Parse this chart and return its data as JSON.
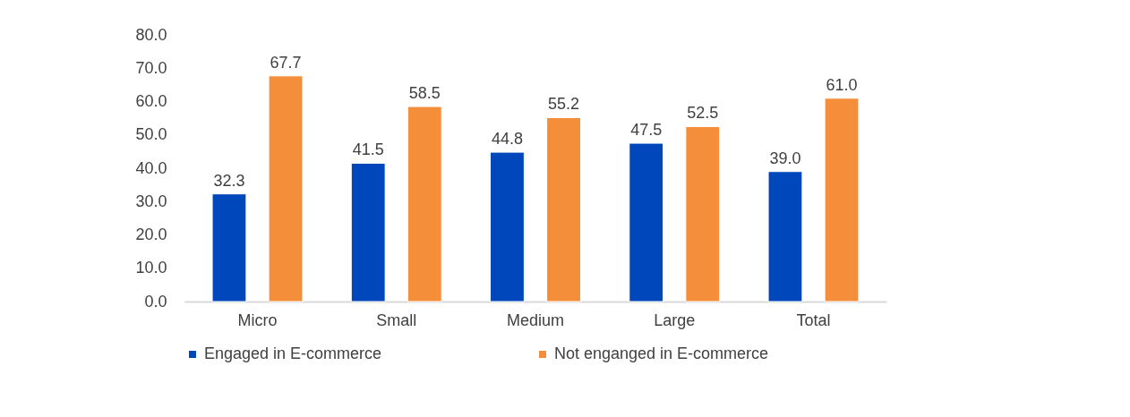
{
  "chart_data": {
    "type": "bar",
    "categories": [
      "Micro",
      "Small",
      "Medium",
      "Large",
      "Total"
    ],
    "series": [
      {
        "name": "Engaged in E-commerce",
        "color": "#0047bb",
        "values": [
          32.3,
          41.5,
          44.8,
          47.5,
          39.0
        ],
        "value_labels": [
          "32.3",
          "41.5",
          "44.8",
          "47.5",
          "39.0"
        ]
      },
      {
        "name": "Not enganged in E-commerce",
        "color": "#f58e3a",
        "values": [
          67.7,
          58.5,
          55.2,
          52.5,
          61.0
        ],
        "value_labels": [
          "67.7",
          "58.5",
          "55.2",
          "52.5",
          "61.0"
        ]
      }
    ],
    "ylim": [
      0,
      80
    ],
    "yticks": [
      {
        "value": 0,
        "label": "0.0"
      },
      {
        "value": 10,
        "label": "10.0"
      },
      {
        "value": 20,
        "label": "20.0"
      },
      {
        "value": 30,
        "label": "30.0"
      },
      {
        "value": 40,
        "label": "40.0"
      },
      {
        "value": 50,
        "label": "50.0"
      },
      {
        "value": 60,
        "label": "60.0"
      },
      {
        "value": 70,
        "label": "70.0"
      },
      {
        "value": 80,
        "label": "80.0"
      }
    ],
    "grid": false,
    "legend": "bottom"
  }
}
